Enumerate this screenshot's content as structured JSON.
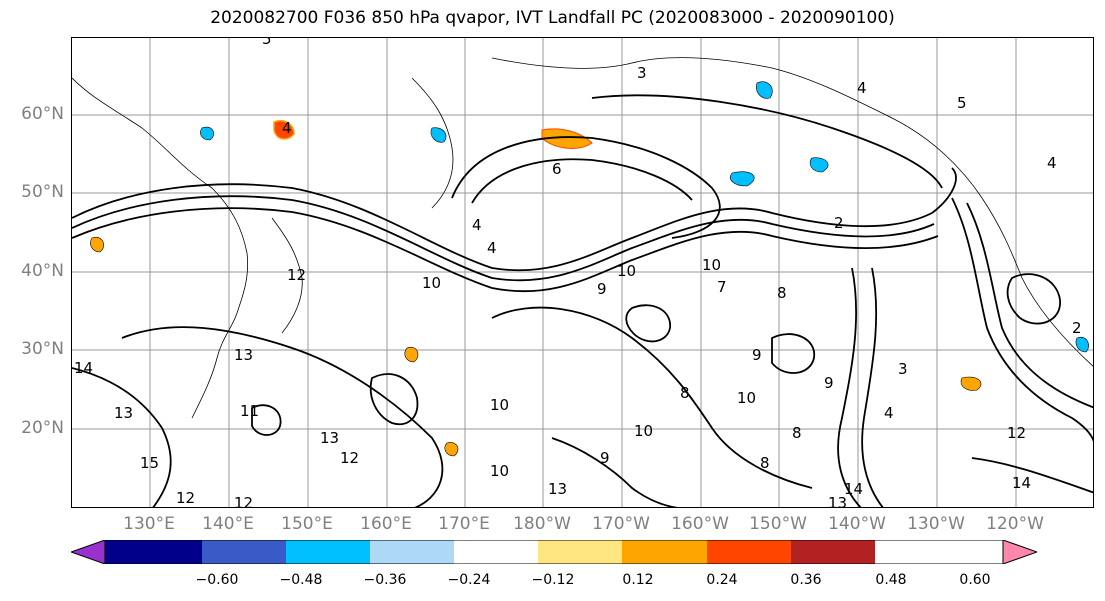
{
  "title": "2020082700 F036 850 hPa qvapor, IVT Landfall PC (2020083000 - 2020090100)",
  "map": {
    "lat_labels": [
      "60°N",
      "50°N",
      "40°N",
      "30°N",
      "20°N"
    ],
    "lon_labels": [
      "130°E",
      "140°E",
      "150°E",
      "160°E",
      "170°E",
      "180°W",
      "170°W",
      "160°W",
      "150°W",
      "140°W",
      "130°W",
      "120°W"
    ],
    "contour_labels": [
      "5",
      "3",
      "4",
      "4",
      "5",
      "6",
      "2",
      "4",
      "4",
      "12",
      "10",
      "10",
      "9",
      "10",
      "7",
      "8",
      "9",
      "13",
      "11",
      "13",
      "14",
      "15",
      "12",
      "12",
      "13",
      "12",
      "10",
      "10",
      "10",
      "9",
      "13",
      "14",
      "13",
      "12",
      "8",
      "8",
      "9",
      "8",
      "10",
      "2",
      "4",
      "3",
      "4",
      "14"
    ],
    "grid": true,
    "coastlines": true
  },
  "colorbar": {
    "ticks": [
      "−0.60",
      "−0.48",
      "−0.36",
      "−0.24",
      "−0.12",
      "0.12",
      "0.24",
      "0.36",
      "0.48",
      "0.60"
    ],
    "colors": [
      "#9932CC",
      "#00008B",
      "#3A5BC7",
      "#00BFFF",
      "#ADD8F6",
      "#FFFFFF",
      "#FFE680",
      "#FFA500",
      "#FF4500",
      "#B22222",
      "#FF88AA"
    ],
    "extend": "both"
  }
}
